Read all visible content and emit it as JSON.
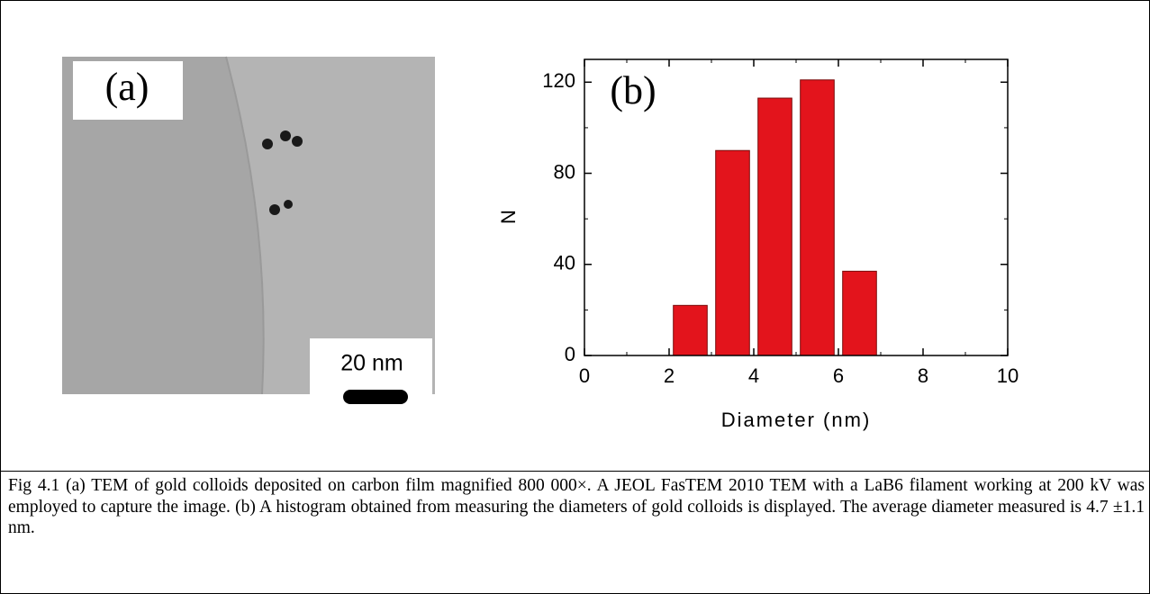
{
  "panel_a": {
    "label": "(a)",
    "scale_bar": "20 nm"
  },
  "chart_data": {
    "type": "histogram",
    "title": "(b)",
    "xlabel": "Diameter (nm)",
    "ylabel": "N",
    "bins": [
      2,
      3,
      4,
      5,
      6,
      7
    ],
    "values": [
      22,
      90,
      113,
      121,
      37
    ],
    "color": "#e3141c",
    "xlim": [
      0,
      10
    ],
    "ylim": [
      0,
      130
    ],
    "xticks": [
      0,
      2,
      4,
      6,
      8,
      10
    ],
    "yticks": [
      0,
      40,
      80,
      120
    ]
  },
  "caption": "Fig 4.1 (a) TEM of gold colloids deposited on carbon film magnified 800 000×. A JEOL FasTEM 2010 TEM with a LaB6 filament working at 200 kV was employed to capture the image. (b) A histogram obtained from measuring the diameters of gold colloids is displayed. The average diameter measured is 4.7 ±1.1 nm."
}
